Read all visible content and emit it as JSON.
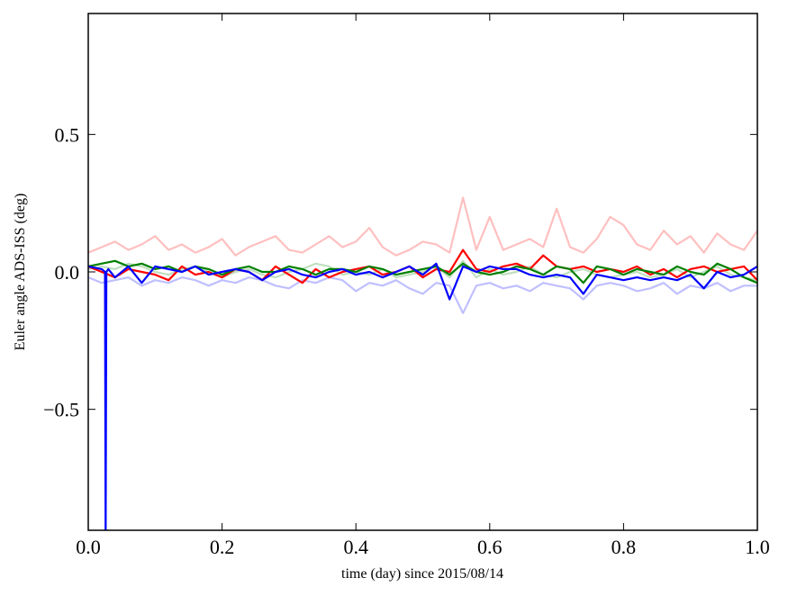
{
  "chart_data": {
    "type": "line",
    "title": "",
    "xlabel": "time (day) since 2015/08/14",
    "ylabel": "Euler angle ADS-ISS (deg)",
    "xlim": [
      0.0,
      1.0
    ],
    "ylim": [
      -0.94,
      0.94
    ],
    "xticks": [
      0.0,
      0.2,
      0.4,
      0.6,
      0.8,
      1.0
    ],
    "xtick_labels": [
      "0.0",
      "0.2",
      "0.4",
      "0.6",
      "0.8",
      "1.0"
    ],
    "yticks": [
      -0.5,
      0.0,
      0.5
    ],
    "ytick_labels": [
      "−0.5",
      "0.0",
      "0.5"
    ],
    "grid": false,
    "x": [
      0,
      0.02,
      0.04,
      0.06,
      0.08,
      0.1,
      0.12,
      0.14,
      0.16,
      0.18,
      0.2,
      0.22,
      0.24,
      0.26,
      0.28,
      0.3,
      0.32,
      0.34,
      0.36,
      0.38,
      0.4,
      0.42,
      0.44,
      0.46,
      0.48,
      0.5,
      0.52,
      0.54,
      0.56,
      0.58,
      0.6,
      0.62,
      0.64,
      0.66,
      0.68,
      0.7,
      0.72,
      0.74,
      0.76,
      0.78,
      0.8,
      0.82,
      0.84,
      0.86,
      0.88,
      0.9,
      0.92,
      0.94,
      0.96,
      0.98,
      1.0
    ],
    "series": [
      {
        "color": "#ff0000",
        "alpha": 0.25,
        "values": [
          0.07,
          0.09,
          0.11,
          0.08,
          0.1,
          0.13,
          0.08,
          0.1,
          0.07,
          0.09,
          0.12,
          0.06,
          0.09,
          0.11,
          0.13,
          0.08,
          0.07,
          0.1,
          0.13,
          0.09,
          0.11,
          0.16,
          0.09,
          0.06,
          0.08,
          0.11,
          0.1,
          0.07,
          0.27,
          0.08,
          0.2,
          0.08,
          0.1,
          0.12,
          0.09,
          0.23,
          0.09,
          0.07,
          0.12,
          0.2,
          0.17,
          0.1,
          0.08,
          0.15,
          0.1,
          0.13,
          0.07,
          0.14,
          0.1,
          0.08,
          0.15
        ]
      },
      {
        "color": "#0000ff",
        "alpha": 0.25,
        "values": [
          -0.02,
          -0.04,
          -0.03,
          -0.02,
          -0.05,
          -0.03,
          -0.04,
          -0.02,
          -0.03,
          -0.05,
          -0.03,
          -0.04,
          -0.02,
          -0.03,
          -0.05,
          -0.06,
          -0.03,
          -0.04,
          -0.02,
          -0.03,
          -0.07,
          -0.04,
          -0.05,
          -0.03,
          -0.06,
          -0.08,
          -0.04,
          -0.05,
          -0.15,
          -0.05,
          -0.04,
          -0.06,
          -0.05,
          -0.07,
          -0.04,
          -0.05,
          -0.06,
          -0.1,
          -0.05,
          -0.04,
          -0.05,
          -0.07,
          -0.06,
          -0.04,
          -0.08,
          -0.05,
          -0.06,
          -0.04,
          -0.07,
          -0.05,
          -0.05
        ]
      },
      {
        "color": "#008000",
        "alpha": 0.25,
        "values": [
          0.01,
          0.02,
          0.01,
          0.03,
          0.02,
          0.0,
          -0.01,
          0.01,
          0.02,
          0.0,
          -0.02,
          0.0,
          0.01,
          -0.01,
          -0.02,
          0.0,
          0.01,
          0.03,
          0.02,
          -0.01,
          0.0,
          -0.01,
          0.01,
          -0.02,
          -0.01,
          0.0,
          0.02,
          -0.02,
          0.04,
          -0.02,
          0.01,
          -0.01,
          0.0,
          0.02,
          -0.01,
          -0.02,
          0.0,
          0.01,
          -0.01,
          -0.02,
          -0.01,
          0.0,
          -0.02,
          -0.01,
          0.01,
          -0.02,
          0.0,
          0.02,
          -0.01,
          -0.02,
          -0.03
        ]
      },
      {
        "color": "#ff0000",
        "alpha": 1,
        "values": [
          0.02,
          0.0,
          -0.02,
          0.01,
          0.0,
          -0.01,
          -0.03,
          0.02,
          -0.01,
          0.0,
          -0.02,
          0.01,
          0.0,
          -0.03,
          0.02,
          -0.01,
          -0.04,
          0.01,
          -0.02,
          0.0,
          0.01,
          0.02,
          -0.01,
          0.0,
          0.02,
          -0.02,
          0.01,
          0.0,
          0.08,
          0.01,
          0.0,
          0.02,
          0.03,
          0.01,
          0.06,
          0.02,
          0.01,
          0.02,
          0.0,
          0.01,
          0.0,
          0.02,
          -0.01,
          0.01,
          -0.02,
          0.01,
          0.02,
          0.0,
          0.01,
          0.02,
          -0.03
        ]
      },
      {
        "color": "#008000",
        "alpha": 1,
        "values": [
          0.02,
          0.03,
          0.04,
          0.02,
          0.03,
          0.01,
          0.02,
          0.0,
          0.02,
          0.01,
          -0.01,
          0.01,
          0.02,
          0.0,
          0.0,
          0.02,
          0.01,
          -0.01,
          0.01,
          0.01,
          0.0,
          0.02,
          0.01,
          -0.01,
          0.0,
          0.01,
          0.02,
          -0.01,
          0.03,
          0.0,
          -0.01,
          0.0,
          0.02,
          0.01,
          -0.01,
          0.02,
          0.01,
          -0.04,
          0.02,
          0.01,
          -0.01,
          0.01,
          0.0,
          -0.01,
          0.02,
          0.0,
          -0.01,
          0.03,
          0.01,
          -0.02,
          -0.04
        ]
      },
      {
        "color": "#0000ff",
        "alpha": 1,
        "x": [
          0,
          0.02,
          0.025,
          0.026,
          0.027,
          0.03,
          0.04,
          0.06,
          0.08,
          0.1,
          0.12,
          0.14,
          0.16,
          0.18,
          0.2,
          0.22,
          0.24,
          0.26,
          0.28,
          0.3,
          0.32,
          0.34,
          0.36,
          0.38,
          0.4,
          0.42,
          0.44,
          0.46,
          0.48,
          0.5,
          0.52,
          0.54,
          0.56,
          0.58,
          0.6,
          0.62,
          0.64,
          0.66,
          0.68,
          0.7,
          0.72,
          0.74,
          0.76,
          0.78,
          0.8,
          0.82,
          0.84,
          0.86,
          0.88,
          0.9,
          0.92,
          0.94,
          0.96,
          0.98,
          1.0
        ],
        "values": [
          0.02,
          0.01,
          0.0,
          -1.0,
          0.0,
          0.01,
          -0.02,
          0.02,
          -0.04,
          0.02,
          0.01,
          0.0,
          0.02,
          -0.01,
          0.0,
          0.01,
          0.0,
          -0.03,
          0.0,
          0.01,
          -0.01,
          -0.02,
          0.0,
          0.01,
          -0.01,
          0.0,
          -0.02,
          0.0,
          0.02,
          -0.01,
          0.03,
          -0.1,
          0.02,
          0.0,
          0.02,
          0.01,
          0.01,
          -0.01,
          -0.02,
          -0.01,
          -0.02,
          -0.08,
          -0.01,
          -0.02,
          -0.03,
          -0.02,
          -0.03,
          -0.02,
          -0.03,
          -0.01,
          -0.06,
          0.0,
          -0.02,
          -0.01,
          0.02
        ]
      }
    ]
  }
}
